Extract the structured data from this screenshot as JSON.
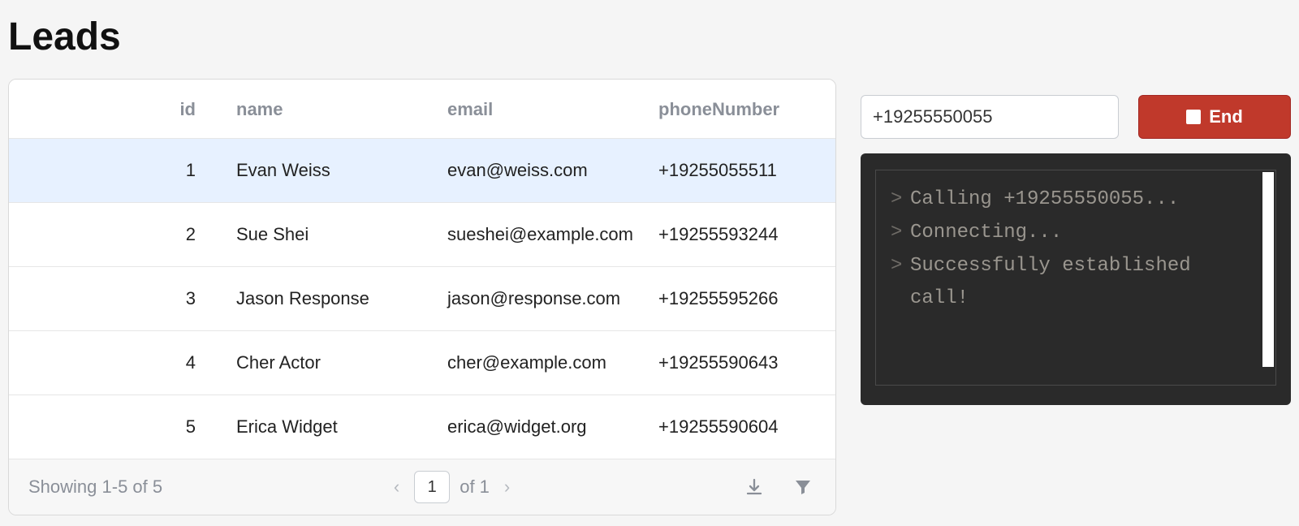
{
  "page": {
    "title": "Leads"
  },
  "table": {
    "columns": {
      "id": "id",
      "name": "name",
      "email": "email",
      "phone": "phoneNumber"
    },
    "rows": [
      {
        "id": "1",
        "name": "Evan Weiss",
        "email": "evan@weiss.com",
        "phone": "+19255055511",
        "selected": true
      },
      {
        "id": "2",
        "name": "Sue Shei",
        "email": "sueshei@example.com",
        "phone": "+19255593244",
        "selected": false
      },
      {
        "id": "3",
        "name": "Jason Response",
        "email": "jason@response.com",
        "phone": "+19255595266",
        "selected": false
      },
      {
        "id": "4",
        "name": "Cher Actor",
        "email": "cher@example.com",
        "phone": "+19255590643",
        "selected": false
      },
      {
        "id": "5",
        "name": "Erica Widget",
        "email": "erica@widget.org",
        "phone": "+19255590604",
        "selected": false
      }
    ],
    "footer": {
      "status": "Showing 1-5 of 5",
      "page": "1",
      "of_label": "of 1"
    }
  },
  "dialer": {
    "phone_value": "+19255550055",
    "end_label": "End"
  },
  "terminal": {
    "prompt": ">",
    "lines": [
      "Calling +19255550055...",
      "Connecting...",
      "Successfully established call!"
    ],
    "colors": {
      "bg": "#2a2a2a",
      "text": "#9a968f",
      "border": "#4a4a4a"
    }
  },
  "colors": {
    "accent_red": "#c0392b",
    "row_selected_bg": "#e7f1ff",
    "header_text": "#8a8f98",
    "page_bg": "#f5f5f5"
  }
}
